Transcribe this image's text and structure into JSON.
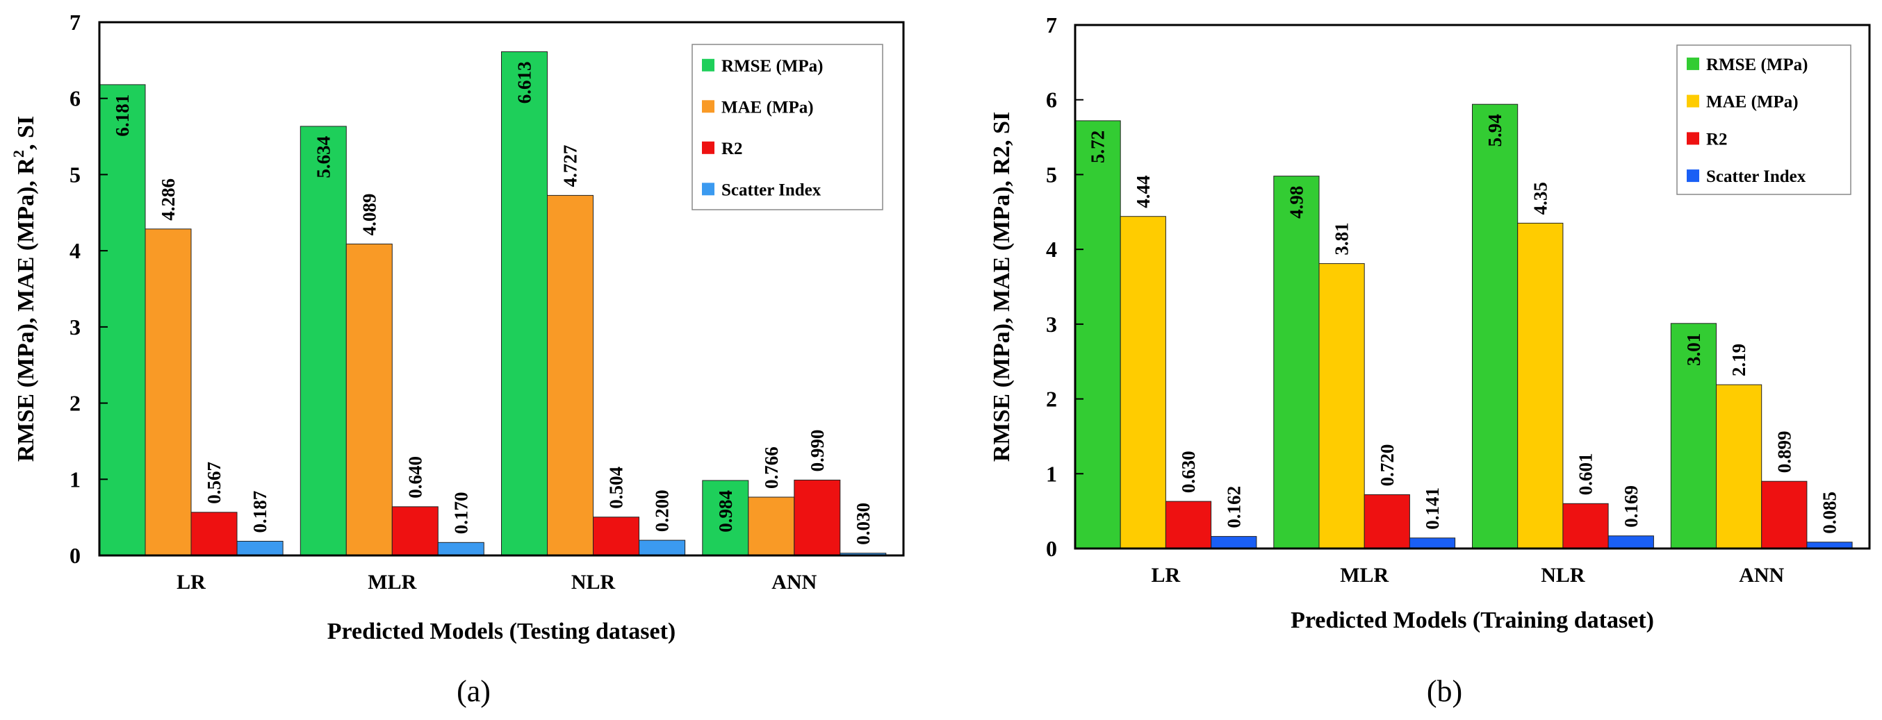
{
  "chart_data": [
    {
      "type": "bar",
      "panel_label": "(a)",
      "categories": [
        "LR",
        "MLR",
        "NLR",
        "ANN"
      ],
      "series": [
        {
          "name": "RMSE (MPa)",
          "color": "#1ecf5a",
          "values": [
            6.181,
            5.634,
            6.613,
            0.984
          ],
          "labels": [
            "6.181",
            "5.634",
            "6.613",
            "0.984"
          ],
          "label_inside": true
        },
        {
          "name": "MAE (MPa)",
          "color": "#f99a26",
          "values": [
            4.286,
            4.089,
            4.727,
            0.766
          ],
          "labels": [
            "4.286",
            "4.089",
            "4.727",
            "0.766"
          ],
          "label_inside": false
        },
        {
          "name": "R2",
          "color": "#ee1111",
          "values": [
            0.567,
            0.64,
            0.504,
            0.99
          ],
          "labels": [
            "0.567",
            "0.640",
            "0.504",
            "0.990"
          ],
          "label_inside": false
        },
        {
          "name": "Scatter Index",
          "color": "#3b9af0",
          "values": [
            0.187,
            0.17,
            0.2,
            0.03
          ],
          "labels": [
            "0.187",
            "0.170",
            "0.200",
            "0.030"
          ],
          "label_inside": false
        }
      ],
      "ylim": [
        0,
        7
      ],
      "yticks": [
        "0",
        "1",
        "2",
        "3",
        "4",
        "5",
        "6",
        "7"
      ],
      "xlabel": "Predicted Models (Testing dataset)",
      "ylabel_main": "RMSE (MPa), MAE (MPa), R",
      "ylabel_sup": "2",
      "ylabel_tail": ", SI",
      "legend_position": "top-right"
    },
    {
      "type": "bar",
      "panel_label": "(b)",
      "categories": [
        "LR",
        "MLR",
        "NLR",
        "ANN"
      ],
      "series": [
        {
          "name": "RMSE (MPa)",
          "color": "#33cc33",
          "values": [
            5.72,
            4.98,
            5.94,
            3.01
          ],
          "labels": [
            "5.72",
            "4.98",
            "5.94",
            "3.01"
          ],
          "label_inside": true
        },
        {
          "name": "MAE (MPa)",
          "color": "#ffcc00",
          "values": [
            4.44,
            3.81,
            4.35,
            2.19
          ],
          "labels": [
            "4.44",
            "3.81",
            "4.35",
            "2.19"
          ],
          "label_inside": false
        },
        {
          "name": "R2",
          "color": "#ee1111",
          "values": [
            0.63,
            0.72,
            0.601,
            0.899
          ],
          "labels": [
            "0.630",
            "0.720",
            "0.601",
            "0.899"
          ],
          "label_inside": false
        },
        {
          "name": "Scatter Index",
          "color": "#1a5ff5",
          "values": [
            0.162,
            0.141,
            0.169,
            0.085
          ],
          "labels": [
            "0.162",
            "0.141",
            "0.169",
            "0.085"
          ],
          "label_inside": false
        }
      ],
      "ylim": [
        0,
        7
      ],
      "yticks": [
        "0",
        "1",
        "2",
        "3",
        "4",
        "5",
        "6",
        "7"
      ],
      "xlabel": "Predicted Models (Training dataset)",
      "ylabel_main": "RMSE (MPa), MAE (MPa), R2, SI",
      "ylabel_sup": "",
      "ylabel_tail": "",
      "legend_position": "top-right"
    }
  ]
}
